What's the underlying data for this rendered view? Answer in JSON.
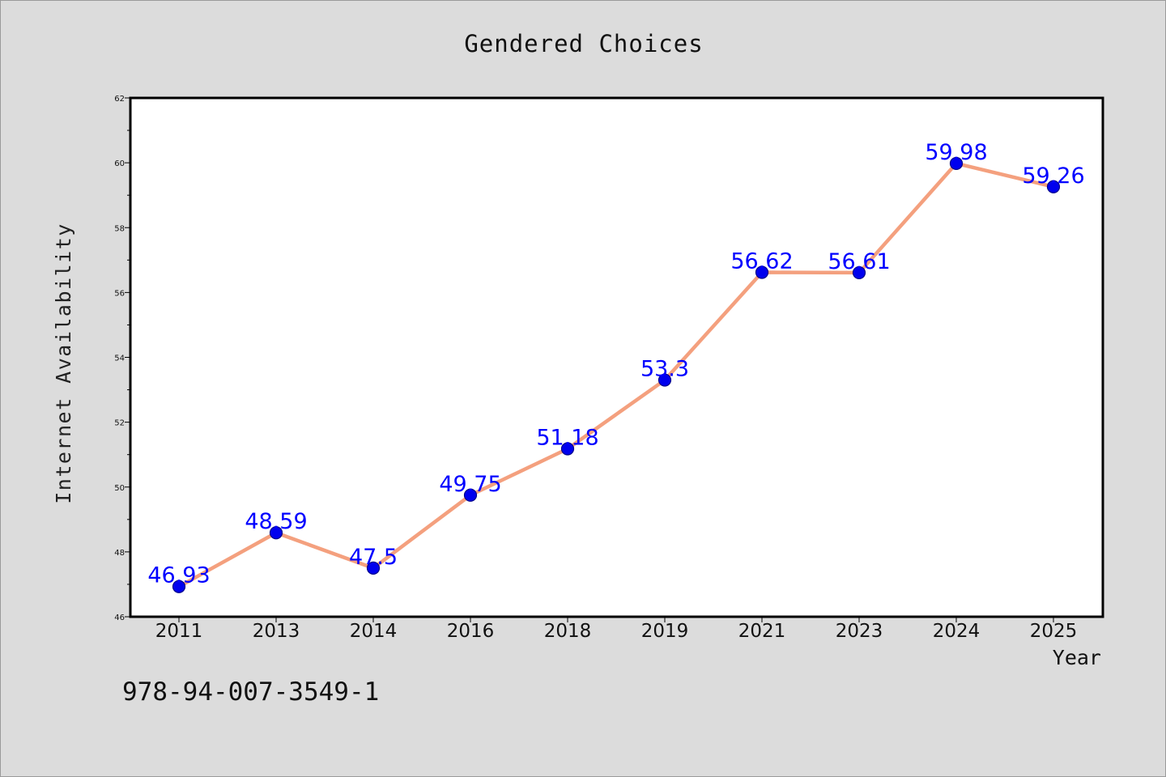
{
  "chart_data": {
    "type": "line",
    "title": "Gendered Choices",
    "xlabel": "Year",
    "ylabel": "Internet Availability",
    "categories": [
      "2011",
      "2013",
      "2014",
      "2016",
      "2018",
      "2019",
      "2021",
      "2023",
      "2024",
      "2025"
    ],
    "series": [
      {
        "values": [
          46.93,
          48.59,
          47.5,
          49.75,
          51.18,
          53.3,
          56.62,
          56.61,
          59.98,
          59.26
        ]
      }
    ],
    "data_labels": [
      "46.93",
      "48.59",
      "47.5",
      "49.75",
      "51.18",
      "53.3",
      "56.62",
      "56.61",
      "59.98",
      "59.26"
    ],
    "ylim": [
      46,
      62
    ],
    "y_ticks": [
      46,
      48,
      50,
      52,
      54,
      56,
      58,
      60,
      62
    ],
    "y_minor_ticks": [
      47,
      49,
      51,
      53,
      55,
      57,
      59,
      61
    ],
    "grid": false,
    "legend": "none",
    "colors": {
      "line": "#f4a07e",
      "marker": "#0000ee",
      "marker_edge": "#00008b",
      "data_label": "#0000ff",
      "plot_background": "#ffffff",
      "figure_background": "#dcdcdc"
    }
  },
  "footer_text": "978-94-007-3549-1"
}
